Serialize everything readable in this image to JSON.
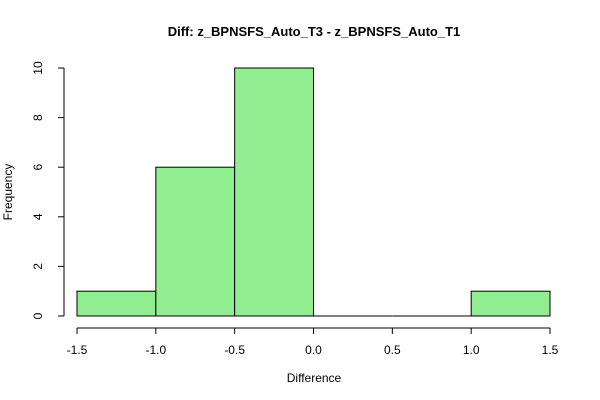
{
  "chart_data": {
    "type": "bar",
    "subtype": "histogram",
    "title": "Diff: z_BPNSFS_Auto_T3 - z_BPNSFS_Auto_T1",
    "xlabel": "Difference",
    "ylabel": "Frequency",
    "bins": [
      {
        "start": -1.5,
        "end": -1.0,
        "count": 1
      },
      {
        "start": -1.0,
        "end": -0.5,
        "count": 6
      },
      {
        "start": -0.5,
        "end": 0.0,
        "count": 10
      },
      {
        "start": 0.0,
        "end": 0.5,
        "count": 0
      },
      {
        "start": 0.5,
        "end": 1.0,
        "count": 0
      },
      {
        "start": 1.0,
        "end": 1.5,
        "count": 1
      }
    ],
    "xlim": [
      -1.5,
      1.5
    ],
    "ylim": [
      0,
      10
    ],
    "xticks": [
      -1.5,
      -1.0,
      -0.5,
      0.0,
      0.5,
      1.0,
      1.5
    ],
    "xtick_labels": [
      "-1.5",
      "-1.0",
      "-0.5",
      "0.0",
      "0.5",
      "1.0",
      "1.5"
    ],
    "yticks": [
      0,
      2,
      4,
      6,
      8,
      10
    ],
    "ytick_labels": [
      "0",
      "2",
      "4",
      "6",
      "8",
      "10"
    ],
    "bar_color": "#90EE90",
    "grid": false,
    "legend": "none"
  }
}
